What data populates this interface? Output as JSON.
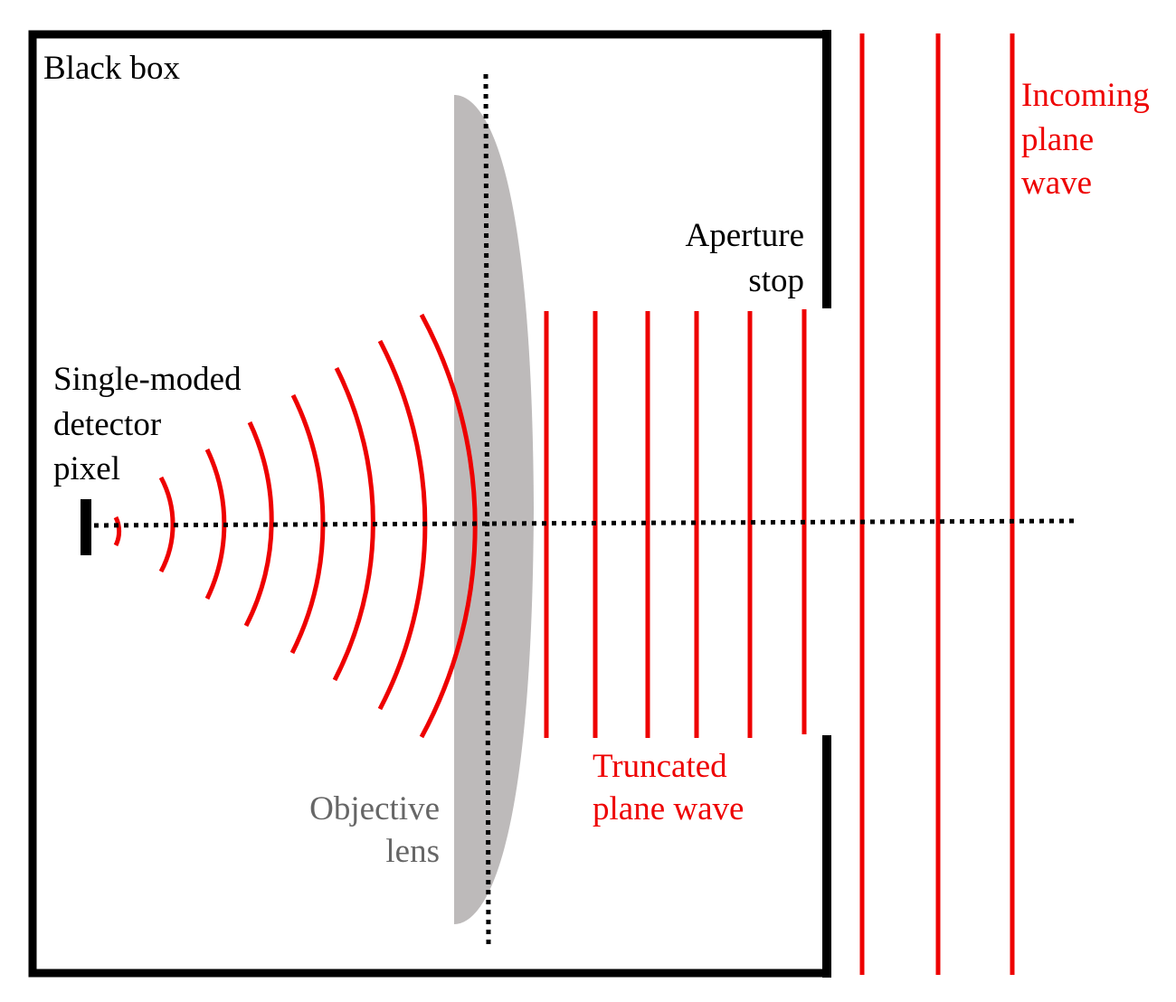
{
  "labels": {
    "black_box": "Black box",
    "detector": [
      "Single-moded",
      "detector",
      "pixel"
    ],
    "aperture": [
      "Aperture",
      "stop"
    ],
    "incoming": [
      "Incoming",
      "plane",
      "wave"
    ],
    "truncated": [
      "Truncated",
      "plane wave"
    ],
    "lens": [
      "Objective",
      "lens"
    ]
  },
  "colors": {
    "wave": "#ee0000",
    "frame": "#000000",
    "lens": "#bdbaba",
    "lens_label": "#666666",
    "text": "#000000"
  }
}
